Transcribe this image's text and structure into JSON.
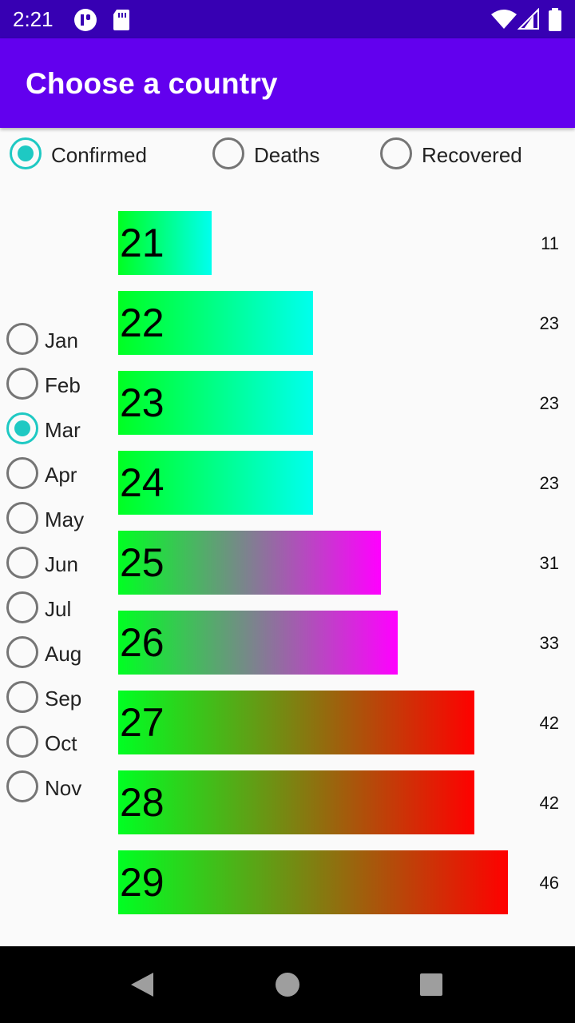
{
  "status_bar": {
    "time": "2:21"
  },
  "app_bar": {
    "title": "Choose a country"
  },
  "metric_options": [
    {
      "label": "Confirmed",
      "checked": true
    },
    {
      "label": "Deaths",
      "checked": false
    },
    {
      "label": "Recovered",
      "checked": false
    }
  ],
  "months": [
    {
      "label": "Jan",
      "checked": false
    },
    {
      "label": "Feb",
      "checked": false
    },
    {
      "label": "Mar",
      "checked": true
    },
    {
      "label": "Apr",
      "checked": false
    },
    {
      "label": "May",
      "checked": false
    },
    {
      "label": "Jun",
      "checked": false
    },
    {
      "label": "Jul",
      "checked": false
    },
    {
      "label": "Aug",
      "checked": false
    },
    {
      "label": "Sep",
      "checked": false
    },
    {
      "label": "Oct",
      "checked": false
    },
    {
      "label": "Nov",
      "checked": false
    }
  ],
  "bars": [
    {
      "day": "21",
      "value": "11",
      "gradient_end": "#00ffee"
    },
    {
      "day": "22",
      "value": "23",
      "gradient_end": "#00ffee"
    },
    {
      "day": "23",
      "value": "23",
      "gradient_end": "#00ffee"
    },
    {
      "day": "24",
      "value": "23",
      "gradient_end": "#00ffee"
    },
    {
      "day": "25",
      "value": "31",
      "gradient_end": "#ff00ff"
    },
    {
      "day": "26",
      "value": "33",
      "gradient_end": "#ff00ff"
    },
    {
      "day": "27",
      "value": "42",
      "gradient_end": "#ff0000"
    },
    {
      "day": "28",
      "value": "42",
      "gradient_end": "#ff0000"
    },
    {
      "day": "29",
      "value": "46",
      "gradient_end": "#ff0000"
    }
  ],
  "colors": {
    "status_bar": "#3700b3",
    "app_bar": "#6200ee",
    "radio_accent": "#1ec9c3",
    "bar_start": "#00ff22"
  }
}
